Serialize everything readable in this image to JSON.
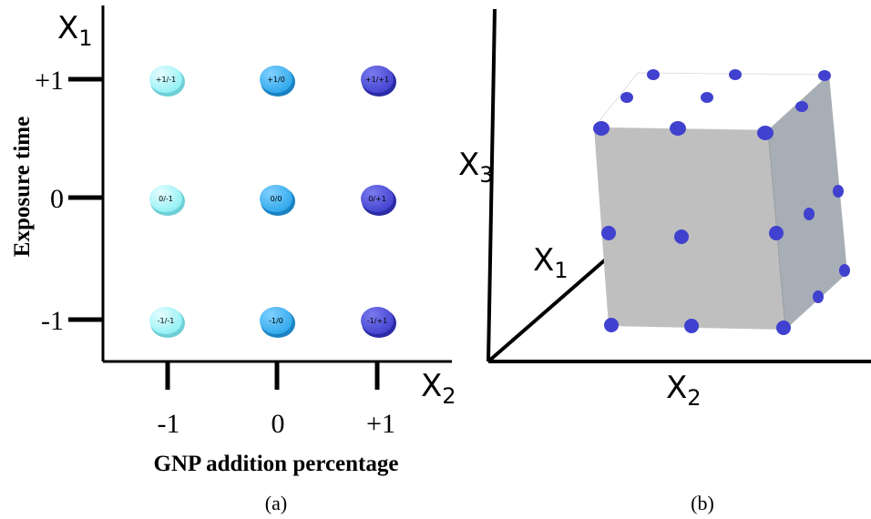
{
  "panel_a": {
    "y_axis_symbol": "X",
    "y_axis_subscript": "1",
    "y_axis_label": "Exposure time",
    "y_ticks": [
      "+1",
      "0",
      "-1"
    ],
    "x_axis_symbol": "X",
    "x_axis_subscript": "2",
    "x_axis_label": "GNP addition percentage",
    "x_ticks": [
      "-1",
      "0",
      "+1"
    ],
    "points": [
      {
        "label": "+1/-1",
        "color": "#8ff0f4"
      },
      {
        "label": "+1/0",
        "color": "#2ea6ea"
      },
      {
        "label": "+1/+1",
        "color": "#4141cf"
      },
      {
        "label": "0/-1",
        "color": "#8ff0f4"
      },
      {
        "label": "0/0",
        "color": "#2ea6ea"
      },
      {
        "label": "0/+1",
        "color": "#4141cf"
      },
      {
        "label": "-1/-1",
        "color": "#8ff0f4"
      },
      {
        "label": "-1/0",
        "color": "#2ea6ea"
      },
      {
        "label": "-1/+1",
        "color": "#4141cf"
      }
    ],
    "caption": "(a)"
  },
  "panel_b": {
    "axis_x1_symbol": "X",
    "axis_x1_subscript": "1",
    "axis_x2_symbol": "X",
    "axis_x2_subscript": "2",
    "axis_x3_symbol": "X",
    "axis_x3_subscript": "3",
    "cube_color": "#bfbfbf",
    "point_color": "#4141cf",
    "caption": "(b)"
  }
}
